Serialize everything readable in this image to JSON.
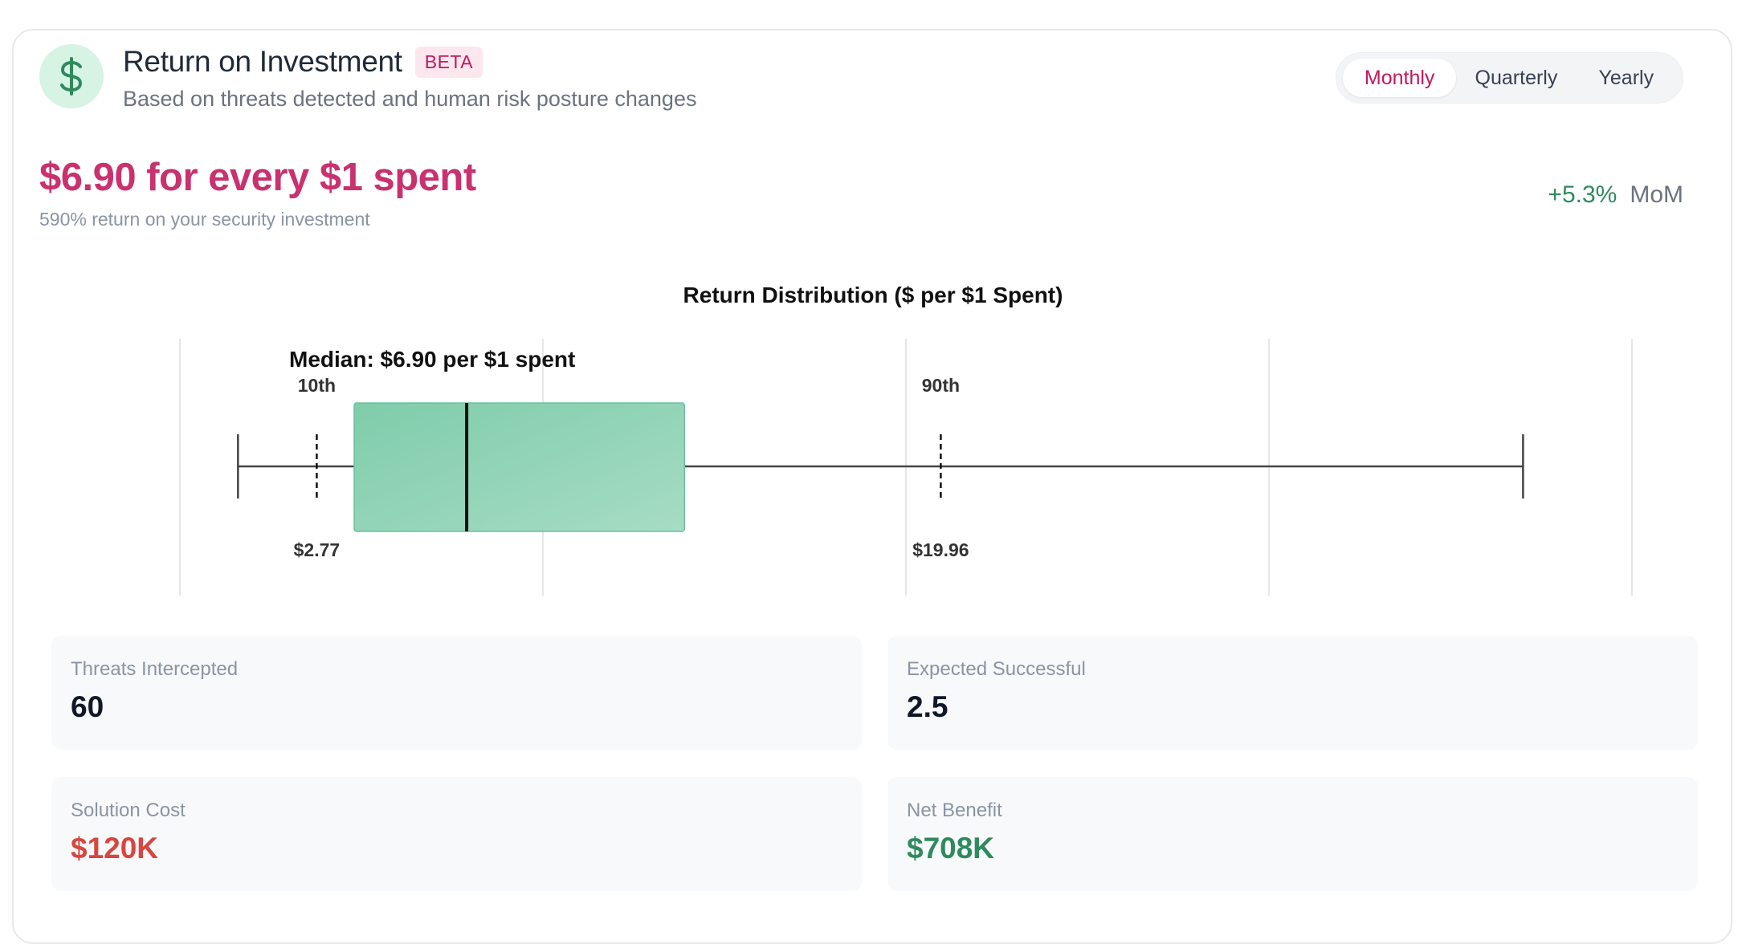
{
  "header": {
    "title": "Return on Investment",
    "badge": "BETA",
    "subtitle": "Based on threats detected and human risk posture changes",
    "icon": "dollar-icon"
  },
  "period_toggle": {
    "options": [
      "Monthly",
      "Quarterly",
      "Yearly"
    ],
    "selected": "Monthly"
  },
  "summary": {
    "headline": "$6.90 for every $1 spent",
    "subline": "590% return on your security investment",
    "mom_change": "+5.3%",
    "mom_label": "MoM"
  },
  "chart_data": {
    "type": "boxplot",
    "title": "Return Distribution ($ per $1 Spent)",
    "median_label": "Median: $6.90 per $1 spent",
    "min": 0.6,
    "p10": 2.77,
    "q1": 3.8,
    "median": 6.9,
    "q3": 12.9,
    "p90": 19.96,
    "max": 36.0,
    "p10_label": "10th",
    "p90_label": "90th",
    "p10_value_label": "$2.77",
    "p90_value_label": "$19.96",
    "xlim": [
      -1,
      39
    ],
    "grid": true,
    "colors": {
      "box": "#8ed3b3",
      "box_edge": "#6cc29b",
      "whisker": "#444444"
    }
  },
  "stats": [
    {
      "label": "Threats Intercepted",
      "value": "60",
      "color": "#111827"
    },
    {
      "label": "Expected Successful",
      "value": "2.5",
      "color": "#111827"
    },
    {
      "label": "Solution Cost",
      "value": "$120K",
      "color": "#d9463f"
    },
    {
      "label": "Net Benefit",
      "value": "$708K",
      "color": "#2f8a5d"
    }
  ]
}
